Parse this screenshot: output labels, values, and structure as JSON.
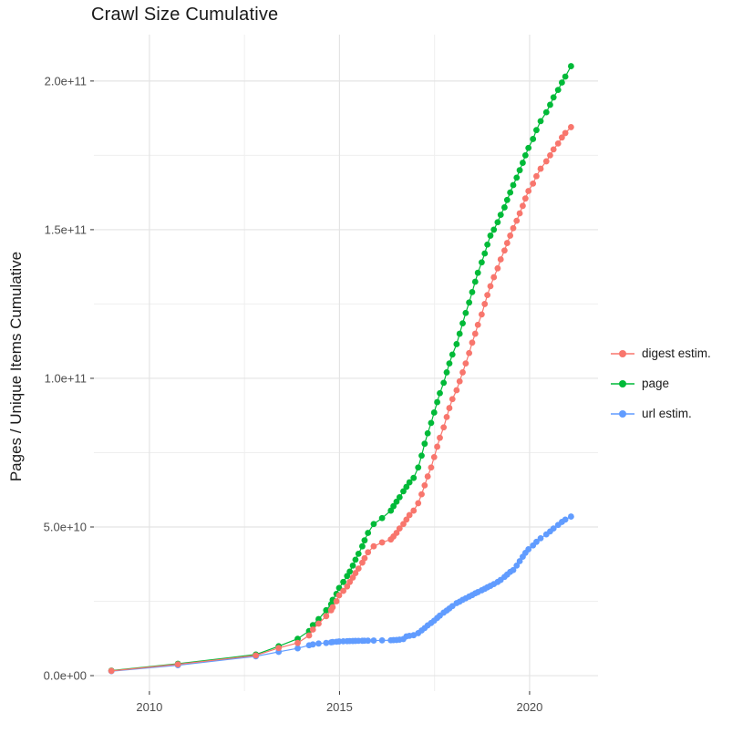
{
  "chart_data": {
    "type": "line",
    "title": "Crawl Size Cumulative",
    "xlabel": "",
    "ylabel": "Pages / Unique Items Cumulative",
    "grid": true,
    "legend_position": "right",
    "xlim": [
      2008.54,
      2021.8
    ],
    "ylim_billions": [
      -5.2,
      215.6
    ],
    "x_major_ticks": [
      2010,
      2015,
      2020
    ],
    "x_tick_labels": [
      "2010",
      "2015",
      "2020"
    ],
    "x_minor_ticks": [
      2012.5,
      2017.5
    ],
    "y_major_ticks_billions": [
      0,
      50,
      100,
      150,
      200
    ],
    "y_tick_labels": [
      "0.0e+00",
      "5.0e+10",
      "1.0e+11",
      "1.5e+11",
      "2.0e+11"
    ],
    "y_minor_ticks_billions": [
      25,
      75,
      125,
      175
    ],
    "x": [
      2009.0,
      2010.75,
      2012.8,
      2013.4,
      2013.9,
      2014.2,
      2014.3,
      2014.45,
      2014.65,
      2014.78,
      2014.82,
      2014.92,
      2014.99,
      2015.1,
      2015.2,
      2015.27,
      2015.35,
      2015.42,
      2015.5,
      2015.6,
      2015.66,
      2015.75,
      2015.9,
      2016.12,
      2016.35,
      2016.42,
      2016.5,
      2016.58,
      2016.68,
      2016.76,
      2016.84,
      2016.95,
      2017.07,
      2017.16,
      2017.24,
      2017.32,
      2017.41,
      2017.49,
      2017.57,
      2017.64,
      2017.74,
      2017.82,
      2017.89,
      2017.97,
      2018.08,
      2018.16,
      2018.24,
      2018.32,
      2018.41,
      2018.49,
      2018.57,
      2018.64,
      2018.74,
      2018.82,
      2018.89,
      2018.97,
      2019.06,
      2019.16,
      2019.24,
      2019.34,
      2019.41,
      2019.49,
      2019.57,
      2019.66,
      2019.74,
      2019.82,
      2019.89,
      2019.97,
      2020.09,
      2020.18,
      2020.29,
      2020.44,
      2020.54,
      2020.63,
      2020.75,
      2020.85,
      2020.94,
      2021.09
    ],
    "series": [
      {
        "name": "digest estim.",
        "color": "#F8766D",
        "values_billions": [
          1.6,
          3.8,
          6.8,
          9.3,
          11,
          13.5,
          15.5,
          17.5,
          20,
          22,
          23,
          25,
          27,
          28.5,
          30,
          31.5,
          33,
          34.5,
          36,
          38,
          39.5,
          41.5,
          43.5,
          44.8,
          45.8,
          46.8,
          48,
          49.5,
          51,
          52.5,
          54,
          55.5,
          58,
          61,
          64,
          67,
          70,
          73.5,
          77,
          80,
          83.5,
          87,
          90,
          93,
          96,
          99,
          102,
          105,
          108.5,
          112,
          115,
          118,
          121.5,
          125,
          128,
          131,
          134,
          137,
          140,
          143,
          145.5,
          148,
          150.5,
          153,
          155.5,
          158,
          160.5,
          163,
          165.5,
          168,
          170.5,
          173,
          175,
          177,
          179,
          181,
          182.5,
          184.5
        ]
      },
      {
        "name": "page",
        "color": "#00BA38",
        "values_billions": [
          1.7,
          4.0,
          7.1,
          9.9,
          12.4,
          15,
          17,
          19,
          22,
          24,
          25.5,
          27.5,
          29.5,
          31.5,
          33.5,
          35,
          37,
          39,
          41,
          43.5,
          45.5,
          48,
          51,
          53,
          55.5,
          57,
          58.5,
          60,
          62,
          63.5,
          65,
          66.5,
          70,
          74,
          78,
          81.5,
          85,
          88.5,
          92,
          95,
          98.5,
          102,
          105,
          108,
          111.5,
          115,
          118.5,
          122,
          125.5,
          129,
          132.5,
          135.5,
          139,
          142,
          145,
          148,
          150,
          152.5,
          155,
          157.5,
          160,
          162.5,
          165,
          167.5,
          170,
          172.5,
          175,
          177.5,
          180.5,
          183.5,
          186.5,
          189.5,
          192,
          194.5,
          197,
          199.5,
          201.5,
          205
        ]
      },
      {
        "name": "url estim.",
        "color": "#619CFF",
        "values_billions": [
          1.5,
          3.5,
          6.5,
          8.0,
          9.2,
          10.2,
          10.5,
          10.8,
          11.0,
          11.2,
          11.3,
          11.4,
          11.5,
          11.55,
          11.6,
          11.62,
          11.65,
          11.68,
          11.7,
          11.72,
          11.74,
          11.76,
          11.8,
          11.85,
          11.9,
          11.95,
          12.0,
          12.1,
          12.3,
          13.2,
          13.4,
          13.6,
          14.3,
          15.2,
          16.0,
          16.9,
          17.7,
          18.5,
          19.4,
          20.2,
          21.2,
          21.9,
          22.6,
          23.4,
          24.4,
          24.9,
          25.5,
          26.0,
          26.6,
          27.1,
          27.7,
          28.1,
          28.7,
          29.2,
          29.7,
          30.2,
          30.8,
          31.5,
          32.2,
          33.2,
          34.0,
          34.9,
          35.5,
          37,
          38.5,
          40,
          41.3,
          42.5,
          43.8,
          45,
          46.2,
          47.5,
          48.5,
          49.5,
          50.7,
          51.7,
          52.5,
          53.5
        ]
      }
    ]
  },
  "style": {
    "axis_text_color": "#4D4D4D",
    "title_text_color": "#1A1A1A",
    "grid_major_color": "#E4E4E4",
    "grid_minor_color": "#EFEFEF",
    "tick_mark_color": "#333333",
    "background_color": "#FFFFFF"
  }
}
